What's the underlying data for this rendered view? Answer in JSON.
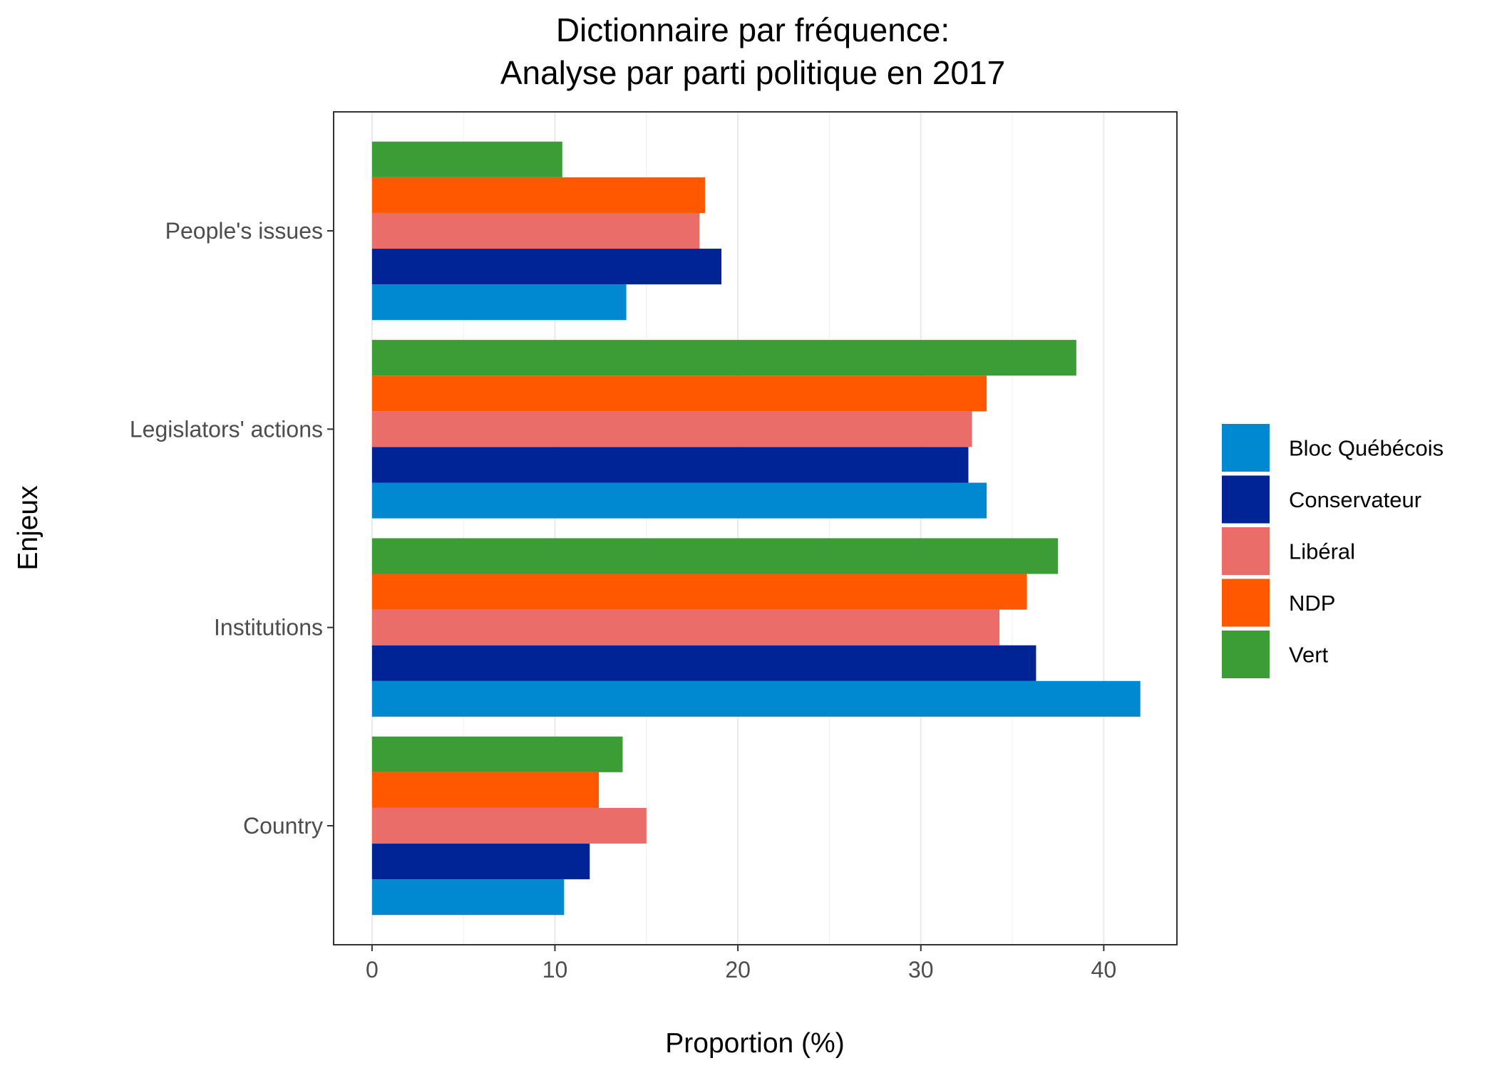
{
  "chart_data": {
    "type": "bar",
    "orientation": "horizontal",
    "title": "Dictionnaire par fréquence:",
    "subtitle": "Analyse par parti politique en 2017",
    "xlabel": "Proportion (%)",
    "ylabel": "Enjeux",
    "xlim": [
      -2.1,
      44
    ],
    "xticks": [
      0,
      10,
      20,
      30,
      40
    ],
    "categories": [
      "People's issues",
      "Legislators' actions",
      "Institutions",
      "Country"
    ],
    "series": [
      {
        "name": "Bloc Québécois",
        "color": "#0088d1",
        "values": [
          13.9,
          33.6,
          42.0,
          10.5
        ]
      },
      {
        "name": "Conservateur",
        "color": "#002395",
        "values": [
          19.1,
          32.6,
          36.3,
          11.9
        ]
      },
      {
        "name": "Libéral",
        "color": "#ea6d6a",
        "values": [
          17.9,
          32.8,
          34.3,
          15.0
        ]
      },
      {
        "name": "NDP",
        "color": "#ff5800",
        "values": [
          18.2,
          33.6,
          35.8,
          12.4
        ]
      },
      {
        "name": "Vert",
        "color": "#3c9d37",
        "values": [
          10.4,
          38.5,
          37.5,
          13.7
        ]
      }
    ],
    "grid": true,
    "legend_position": "right"
  }
}
